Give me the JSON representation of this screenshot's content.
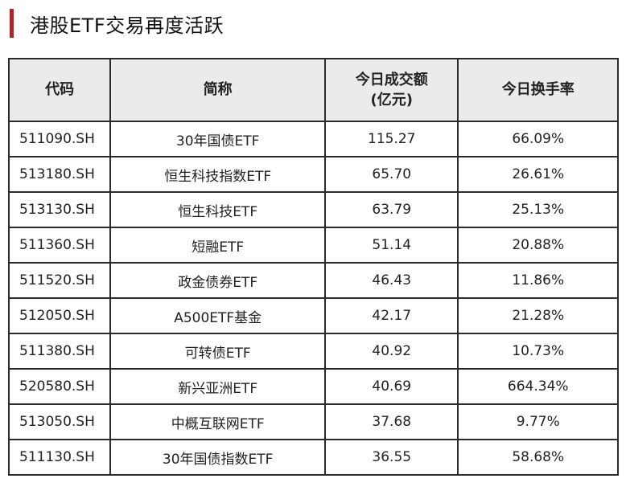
{
  "title": "港股ETF交易再度活跃",
  "colors": {
    "accent": "#b4232a",
    "header_bg": "#ebebeb",
    "border": "#2b2b2b"
  },
  "headers": [
    "代码",
    "简称",
    "今日成交额",
    "(亿元)",
    "今日换手率"
  ],
  "rows": [
    [
      "511090.SH",
      "30年国债ETF",
      "115.27",
      "66.09%"
    ],
    [
      "513180.SH",
      "恒生科技指数ETF",
      "65.70",
      "26.61%"
    ],
    [
      "513130.SH",
      "恒生科技ETF",
      "63.79",
      "25.13%"
    ],
    [
      "511360.SH",
      "短融ETF",
      "51.14",
      "20.88%"
    ],
    [
      "511520.SH",
      "政金债券ETF",
      "46.43",
      "11.86%"
    ],
    [
      "512050.SH",
      "A500ETF基金",
      "42.17",
      "21.28%"
    ],
    [
      "511380.SH",
      "可转债ETF",
      "40.92",
      "10.73%"
    ],
    [
      "520580.SH",
      "新兴亚洲ETF",
      "40.69",
      "664.34%"
    ],
    [
      "513050.SH",
      "中概互联网ETF",
      "37.68",
      "9.77%"
    ],
    [
      "511130.SH",
      "30年国债指数ETF",
      "36.55",
      "58.68%"
    ]
  ]
}
